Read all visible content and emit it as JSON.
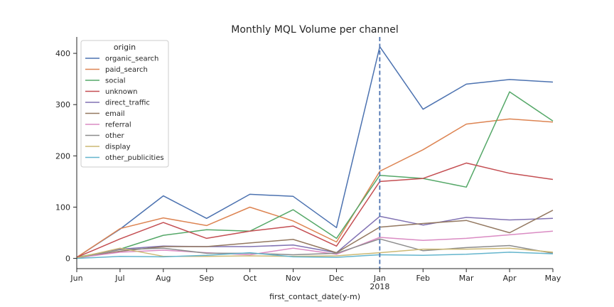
{
  "chart_data": {
    "type": "line",
    "title": "Monthly MQL Volume per channel",
    "xlabel": "first_contact_date(y-m)",
    "ylabel": "",
    "x": [
      "Jun",
      "Jul",
      "Aug",
      "Sep",
      "Oct",
      "Nov",
      "Dec",
      "Jan",
      "Feb",
      "Mar",
      "Apr",
      "May"
    ],
    "x_sublabels": {
      "Jan": "2018"
    },
    "yticks": [
      0,
      100,
      200,
      300,
      400
    ],
    "ylim": [
      -20,
      432
    ],
    "legend_title": "origin",
    "legend_position": "upper-left",
    "vline": {
      "x": "Jan",
      "style": "dashed"
    },
    "series": [
      {
        "name": "organic_search",
        "color": "#4c72b0",
        "values": [
          2,
          57,
          122,
          78,
          125,
          121,
          60,
          413,
          291,
          340,
          349,
          344
        ]
      },
      {
        "name": "paid_search",
        "color": "#dd8452",
        "values": [
          2,
          58,
          79,
          64,
          100,
          73,
          32,
          170,
          212,
          262,
          272,
          266
        ]
      },
      {
        "name": "social",
        "color": "#55a868",
        "values": [
          2,
          18,
          45,
          56,
          53,
          95,
          39,
          162,
          156,
          139,
          325,
          268
        ]
      },
      {
        "name": "unknown",
        "color": "#c44e52",
        "values": [
          2,
          38,
          70,
          39,
          53,
          63,
          24,
          150,
          156,
          186,
          166,
          154
        ]
      },
      {
        "name": "direct_traffic",
        "color": "#8172b3",
        "values": [
          1,
          18,
          24,
          23,
          23,
          26,
          11,
          82,
          65,
          80,
          75,
          78
        ]
      },
      {
        "name": "email",
        "color": "#937860",
        "values": [
          1,
          14,
          23,
          23,
          30,
          37,
          11,
          61,
          68,
          74,
          50,
          94
        ]
      },
      {
        "name": "referral",
        "color": "#da8bc3",
        "values": [
          1,
          12,
          16,
          11,
          7,
          20,
          8,
          41,
          35,
          39,
          46,
          53
        ]
      },
      {
        "name": "other",
        "color": "#8c8c8c",
        "values": [
          1,
          17,
          20,
          10,
          10,
          7,
          10,
          38,
          15,
          21,
          25,
          10
        ]
      },
      {
        "name": "display",
        "color": "#ccb974",
        "values": [
          1,
          20,
          4,
          4,
          5,
          4,
          5,
          11,
          18,
          18,
          20,
          12
        ]
      },
      {
        "name": "other_publicities",
        "color": "#64b5cd",
        "values": [
          0,
          4,
          3,
          6,
          11,
          3,
          2,
          7,
          6,
          8,
          12,
          9
        ]
      }
    ]
  }
}
